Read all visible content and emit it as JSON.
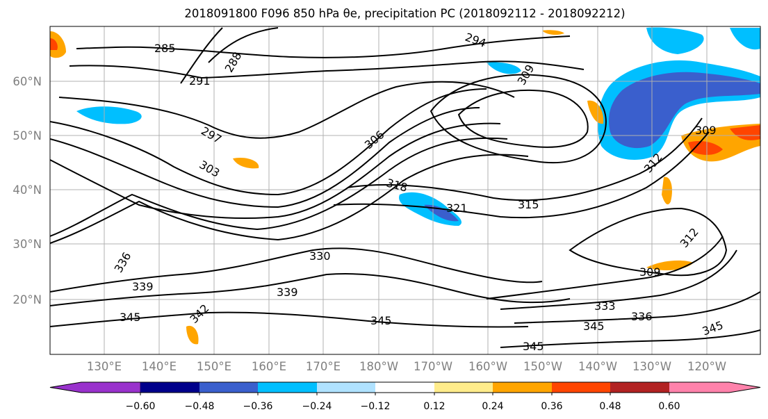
{
  "title": "2018091800 F096 850 hPa θe, precipitation PC (2018092112 - 2018092212)",
  "map": {
    "lat_labels": [
      "60°N",
      "50°N",
      "40°N",
      "30°N",
      "20°N"
    ],
    "lon_labels": [
      "130°E",
      "140°E",
      "150°E",
      "160°E",
      "170°E",
      "180°W",
      "170°W",
      "160°W",
      "150°W",
      "140°W",
      "130°W",
      "120°W"
    ],
    "contour_labels": [
      "285",
      "288",
      "291",
      "294",
      "297",
      "303",
      "306",
      "309",
      "309",
      "309",
      "312",
      "312",
      "315",
      "318",
      "321",
      "330",
      "336",
      "339",
      "339",
      "342",
      "345",
      "345",
      "345",
      "345",
      "345",
      "333",
      "336"
    ]
  },
  "colorbar": {
    "ticks": [
      "−0.60",
      "−0.48",
      "−0.36",
      "−0.24",
      "−0.12",
      "0.12",
      "0.24",
      "0.36",
      "0.48",
      "0.60"
    ],
    "colors": [
      "#9932cc",
      "#00008b",
      "#3a5fcd",
      "#00bfff",
      "#b0e2ff",
      "#ffffff",
      "#ffec8b",
      "#ffa500",
      "#ff4500",
      "#b22222",
      "#ff82ab"
    ]
  }
}
